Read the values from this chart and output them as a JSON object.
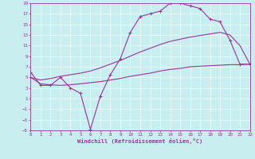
{
  "bg_color": "#c8eef0",
  "line_color": "#993399",
  "xmin": 0,
  "xmax": 22,
  "ymin": -5,
  "ymax": 19,
  "yticks": [
    -5,
    -3,
    -1,
    1,
    3,
    5,
    7,
    9,
    11,
    13,
    15,
    17,
    19
  ],
  "xticks": [
    0,
    1,
    2,
    3,
    4,
    5,
    6,
    7,
    8,
    9,
    10,
    11,
    12,
    13,
    14,
    15,
    16,
    17,
    18,
    19,
    20,
    21,
    22
  ],
  "curve1_x": [
    0,
    1,
    2,
    3,
    4,
    5,
    6,
    7,
    8,
    9,
    10,
    11,
    12,
    13,
    14,
    15,
    16,
    17,
    18,
    19,
    20,
    21,
    22
  ],
  "curve1_y": [
    6.0,
    3.5,
    3.5,
    5.0,
    3.0,
    2.0,
    -4.8,
    1.5,
    5.5,
    8.5,
    13.5,
    16.5,
    17.0,
    17.5,
    19.0,
    19.0,
    18.5,
    18.0,
    16.0,
    15.5,
    12.0,
    7.5,
    7.5
  ],
  "curve2_x": [
    0,
    1,
    2,
    3,
    4,
    5,
    6,
    7,
    8,
    9,
    10,
    11,
    12,
    13,
    14,
    15,
    16,
    17,
    18,
    19,
    20,
    21,
    22
  ],
  "curve2_y": [
    5.0,
    3.8,
    3.6,
    3.5,
    3.6,
    3.8,
    4.0,
    4.2,
    4.5,
    4.8,
    5.2,
    5.5,
    5.8,
    6.2,
    6.5,
    6.7,
    7.0,
    7.1,
    7.2,
    7.3,
    7.4,
    7.4,
    7.5
  ],
  "curve3_x": [
    0,
    1,
    2,
    3,
    4,
    5,
    6,
    7,
    8,
    9,
    10,
    11,
    12,
    13,
    14,
    15,
    16,
    17,
    18,
    19,
    20,
    21,
    22
  ],
  "curve3_y": [
    5.0,
    4.5,
    4.8,
    5.2,
    5.5,
    5.8,
    6.2,
    6.8,
    7.5,
    8.2,
    9.0,
    9.8,
    10.5,
    11.2,
    11.8,
    12.2,
    12.6,
    12.9,
    13.2,
    13.5,
    13.0,
    11.0,
    7.5
  ],
  "xlabel": "Windchill (Refroidissement éolien,°C)",
  "xlabel_fontsize": 5.0,
  "tick_fontsize": 4.2,
  "marker": "+",
  "markersize": 2.5,
  "linewidth": 0.8,
  "grid_color": "#ffffff",
  "grid_lw": 0.4,
  "spine_lw": 0.6
}
